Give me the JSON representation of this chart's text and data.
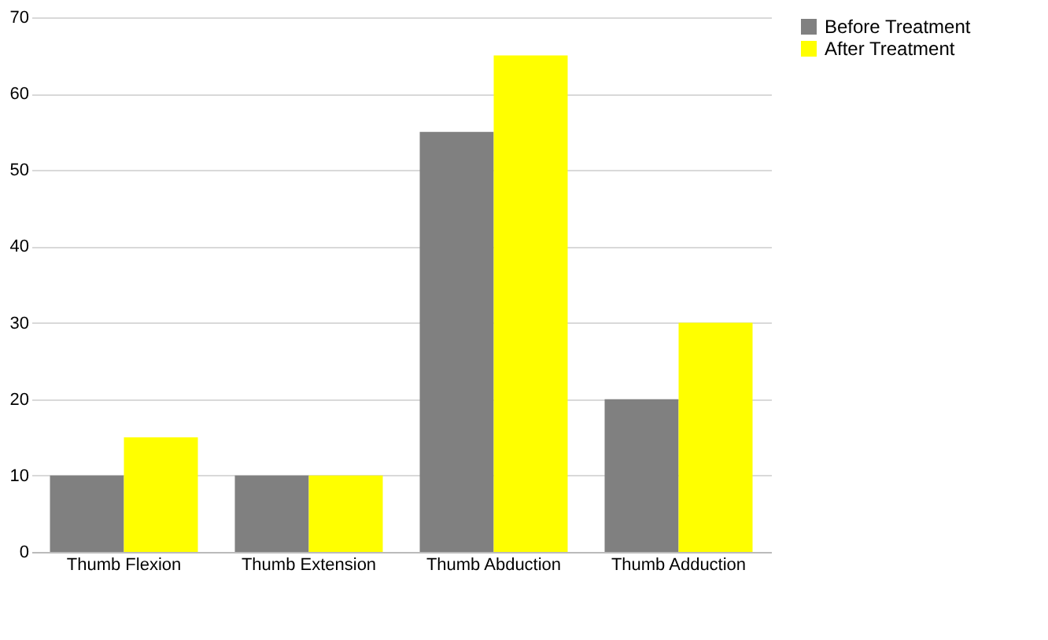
{
  "chart_data": {
    "type": "bar",
    "categories": [
      "Thumb Flexion",
      "Thumb Extension",
      "Thumb Abduction",
      "Thumb Adduction"
    ],
    "series": [
      {
        "name": "Before Treatment",
        "color": "#808080",
        "values": [
          10,
          10,
          55,
          20
        ]
      },
      {
        "name": "After Treatment",
        "color": "#ffff00",
        "values": [
          15,
          10,
          65,
          30
        ]
      }
    ],
    "ylim": [
      0,
      70
    ],
    "yticks": [
      0,
      10,
      20,
      30,
      40,
      50,
      60,
      70
    ],
    "grid": "y",
    "legend": "right"
  }
}
